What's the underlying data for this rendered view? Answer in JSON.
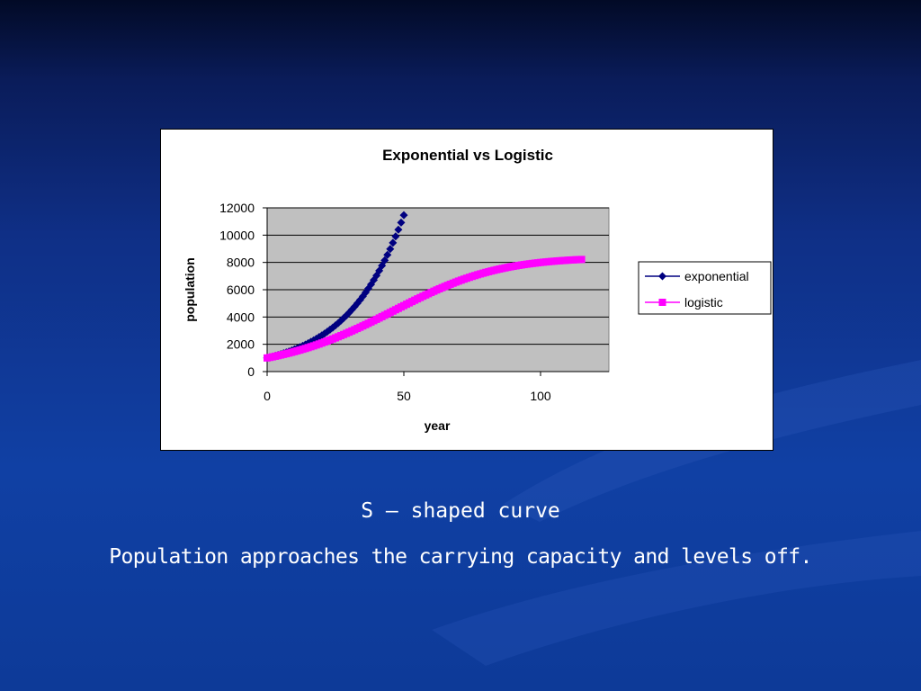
{
  "slide": {
    "caption_line1": "S – shaped curve",
    "caption_line2": "Population approaches the carrying capacity and levels off."
  },
  "colors": {
    "exponential": "#000080",
    "logistic": "#ff00ff",
    "plot_area": "#c0c0c0"
  },
  "chart_data": {
    "type": "scatter",
    "title": "Exponential vs Logistic",
    "xlabel": "year",
    "ylabel": "population",
    "xlim": [
      0,
      125
    ],
    "ylim": [
      0,
      12000
    ],
    "x_ticks": [
      "0",
      "50",
      "100"
    ],
    "y_ticks": [
      "0",
      "2000",
      "4000",
      "6000",
      "8000",
      "10000",
      "12000"
    ],
    "grid": "horizontal",
    "legend": "right",
    "series": [
      {
        "name": "exponential",
        "marker": "diamond",
        "x": [
          0,
          1,
          2,
          3,
          4,
          5,
          6,
          7,
          8,
          9,
          10,
          11,
          12,
          13,
          14,
          15,
          16,
          17,
          18,
          19,
          20,
          21,
          22,
          23,
          24,
          25,
          26,
          27,
          28,
          29,
          30,
          31,
          32,
          33,
          34,
          35,
          36,
          37,
          38,
          39,
          40,
          41,
          42,
          43,
          44,
          45,
          46,
          47,
          48,
          49,
          50
        ],
        "y": [
          1000,
          1050,
          1103,
          1158,
          1216,
          1276,
          1340,
          1407,
          1477,
          1551,
          1629,
          1710,
          1796,
          1886,
          1980,
          2079,
          2183,
          2292,
          2407,
          2527,
          2653,
          2786,
          2925,
          3072,
          3225,
          3386,
          3556,
          3733,
          3920,
          4116,
          4322,
          4538,
          4765,
          5003,
          5253,
          5516,
          5792,
          6081,
          6385,
          6705,
          7040,
          7392,
          7762,
          8150,
          8557,
          8985,
          9434,
          9906,
          10401,
          10921,
          11467
        ]
      },
      {
        "name": "logistic",
        "marker": "square",
        "x": [
          0,
          1,
          2,
          3,
          4,
          5,
          6,
          7,
          8,
          9,
          10,
          11,
          12,
          13,
          14,
          15,
          16,
          17,
          18,
          19,
          20,
          21,
          22,
          23,
          24,
          25,
          26,
          27,
          28,
          29,
          30,
          31,
          32,
          33,
          34,
          35,
          36,
          37,
          38,
          39,
          40,
          41,
          42,
          43,
          44,
          45,
          46,
          47,
          48,
          49,
          50,
          51,
          52,
          53,
          54,
          55,
          56,
          57,
          58,
          59,
          60,
          61,
          62,
          63,
          64,
          65,
          66,
          67,
          68,
          69,
          70,
          71,
          72,
          73,
          74,
          75,
          76,
          77,
          78,
          79,
          80,
          81,
          82,
          83,
          84,
          85,
          86,
          87,
          88,
          89,
          90,
          91,
          92,
          93,
          94,
          95,
          96,
          97,
          98,
          99,
          100,
          101,
          102,
          103,
          104,
          105,
          106,
          107,
          108,
          109,
          110,
          111,
          112,
          113,
          114,
          115
        ],
        "y": [
          1000,
          1040,
          1081,
          1124,
          1168,
          1214,
          1261,
          1310,
          1360,
          1412,
          1465,
          1521,
          1577,
          1636,
          1696,
          1758,
          1822,
          1887,
          1954,
          2023,
          2094,
          2166,
          2240,
          2316,
          2393,
          2472,
          2553,
          2635,
          2719,
          2805,
          2891,
          2980,
          3070,
          3161,
          3253,
          3347,
          3441,
          3537,
          3634,
          3731,
          3830,
          3929,
          4029,
          4129,
          4230,
          4331,
          4432,
          4533,
          4634,
          4735,
          4836,
          4936,
          5035,
          5134,
          5232,
          5330,
          5426,
          5522,
          5616,
          5709,
          5801,
          5891,
          5980,
          6068,
          6153,
          6237,
          6320,
          6400,
          6479,
          6556,
          6631,
          6703,
          6774,
          6843,
          6910,
          6975,
          7038,
          7099,
          7158,
          7214,
          7269,
          7322,
          7373,
          7422,
          7469,
          7514,
          7557,
          7599,
          7639,
          7677,
          7713,
          7748,
          7781,
          7812,
          7842,
          7871,
          7898,
          7924,
          7949,
          7972,
          7995,
          8016,
          8036,
          8055,
          8073,
          8090,
          8106,
          8121,
          8136,
          8149,
          8162,
          8175,
          8186,
          8197,
          8207,
          8217
        ]
      }
    ]
  }
}
